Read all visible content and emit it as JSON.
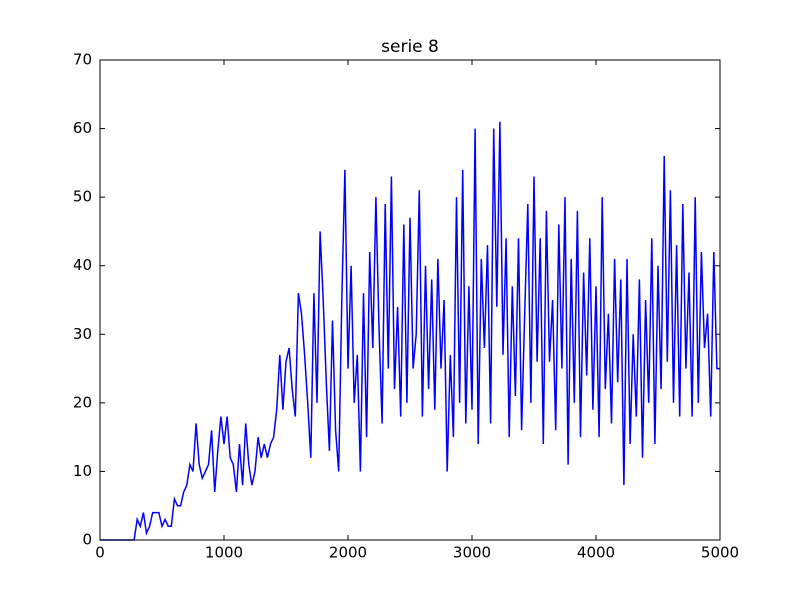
{
  "chart_data": {
    "type": "line",
    "title": "serie 8",
    "x": [
      0,
      25,
      50,
      75,
      100,
      125,
      150,
      175,
      200,
      225,
      250,
      275,
      300,
      325,
      350,
      375,
      400,
      425,
      450,
      475,
      500,
      525,
      550,
      575,
      600,
      625,
      650,
      675,
      700,
      725,
      750,
      775,
      800,
      825,
      850,
      875,
      900,
      925,
      950,
      975,
      1000,
      1025,
      1050,
      1075,
      1100,
      1125,
      1150,
      1175,
      1200,
      1225,
      1250,
      1275,
      1300,
      1325,
      1350,
      1375,
      1400,
      1425,
      1450,
      1475,
      1500,
      1525,
      1550,
      1575,
      1600,
      1625,
      1650,
      1675,
      1700,
      1725,
      1750,
      1775,
      1800,
      1825,
      1850,
      1875,
      1900,
      1925,
      1950,
      1975,
      2000,
      2025,
      2050,
      2075,
      2100,
      2125,
      2150,
      2175,
      2200,
      2225,
      2250,
      2275,
      2300,
      2325,
      2350,
      2375,
      2400,
      2425,
      2450,
      2475,
      2500,
      2525,
      2550,
      2575,
      2600,
      2625,
      2650,
      2675,
      2700,
      2725,
      2750,
      2775,
      2800,
      2825,
      2850,
      2875,
      2900,
      2925,
      2950,
      2975,
      3000,
      3025,
      3050,
      3075,
      3100,
      3125,
      3150,
      3175,
      3200,
      3225,
      3250,
      3275,
      3300,
      3325,
      3350,
      3375,
      3400,
      3425,
      3450,
      3475,
      3500,
      3525,
      3550,
      3575,
      3600,
      3625,
      3650,
      3675,
      3700,
      3725,
      3750,
      3775,
      3800,
      3825,
      3850,
      3875,
      3900,
      3925,
      3950,
      3975,
      4000,
      4025,
      4050,
      4075,
      4100,
      4125,
      4150,
      4175,
      4200,
      4225,
      4250,
      4275,
      4300,
      4325,
      4350,
      4375,
      4400,
      4425,
      4450,
      4475,
      4500,
      4525,
      4550,
      4575,
      4600,
      4625,
      4650,
      4675,
      4700,
      4725,
      4750,
      4775,
      4800,
      4825,
      4850,
      4875,
      4900,
      4925,
      4950,
      4975,
      5000
    ],
    "series": [
      {
        "color": "#0000ff",
        "values": [
          0,
          0,
          0,
          0,
          0,
          0,
          0,
          0,
          0,
          0,
          0,
          0,
          3,
          2,
          4,
          1,
          2,
          4,
          4,
          4,
          2,
          3,
          2,
          2,
          6,
          5,
          5,
          7,
          8,
          11,
          10,
          17,
          11,
          9,
          10,
          11,
          16,
          7,
          13,
          18,
          14,
          18,
          12,
          11,
          7,
          14,
          8,
          17,
          11,
          8,
          10,
          15,
          12,
          14,
          12,
          14,
          15,
          19,
          27,
          19,
          26,
          28,
          22,
          18,
          36,
          33,
          27,
          20,
          12,
          36,
          20,
          45,
          35,
          23,
          13,
          32,
          16,
          10,
          35,
          54,
          25,
          40,
          20,
          27,
          10,
          36,
          15,
          42,
          28,
          50,
          31,
          17,
          49,
          25,
          53,
          22,
          34,
          18,
          46,
          20,
          47,
          25,
          30,
          51,
          18,
          40,
          22,
          38,
          19,
          41,
          25,
          35,
          10,
          27,
          15,
          50,
          20,
          54,
          17,
          37,
          19,
          60,
          14,
          41,
          28,
          43,
          17,
          60,
          34,
          61,
          27,
          44,
          15,
          37,
          21,
          44,
          16,
          33,
          49,
          20,
          53,
          26,
          44,
          14,
          48,
          26,
          35,
          16,
          46,
          25,
          50,
          11,
          41,
          20,
          48,
          15,
          39,
          24,
          44,
          19,
          37,
          15,
          50,
          22,
          33,
          17,
          41,
          23,
          38,
          8,
          41,
          14,
          30,
          18,
          38,
          12,
          35,
          20,
          44,
          14,
          40,
          22,
          56,
          26,
          51,
          20,
          43,
          18,
          49,
          25,
          39,
          18,
          50,
          20,
          42,
          28,
          33,
          18,
          42,
          25,
          25
        ]
      }
    ],
    "xlim": [
      0,
      5000
    ],
    "xticks": [
      0,
      1000,
      2000,
      3000,
      4000,
      5000
    ],
    "ylim": [
      0,
      70
    ],
    "yticks": [
      0,
      10,
      20,
      30,
      40,
      50,
      60,
      70
    ]
  }
}
